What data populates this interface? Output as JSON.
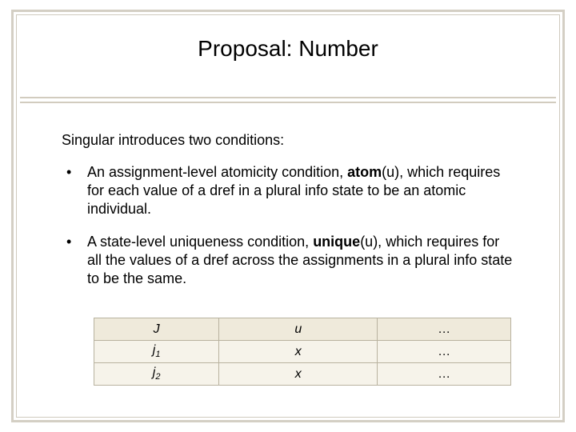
{
  "title": "Proposal: Number",
  "intro": "Singular introduces two conditions:",
  "bullets": [
    {
      "pre": "An assignment-level atomicity condition, ",
      "bold": "atom",
      "post": "(u), which requires for each value of a dref in a plural info state to be an atomic individual."
    },
    {
      "pre": "A state-level uniqueness condition, ",
      "bold": "unique",
      "post": "(u), which requires for all the values of a dref across the assignments in a plural info state to be the same."
    }
  ],
  "table": {
    "columns": [
      "J",
      "u",
      "…"
    ],
    "rows": [
      {
        "label_main": "j",
        "label_sub": "1",
        "cells": [
          "x",
          "…"
        ]
      },
      {
        "label_main": "j",
        "label_sub": "2",
        "cells": [
          "x",
          "…"
        ]
      }
    ],
    "col_widths_pct": [
      30,
      38,
      32
    ],
    "header_bg": "#efeadb",
    "row_bg": "#f6f3ea",
    "border_color": "#b8b29f"
  },
  "frame": {
    "outer_border_color": "#d4cfc4",
    "inner_border_color": "#cfcabe",
    "hr_color": "#d2ccbf"
  }
}
